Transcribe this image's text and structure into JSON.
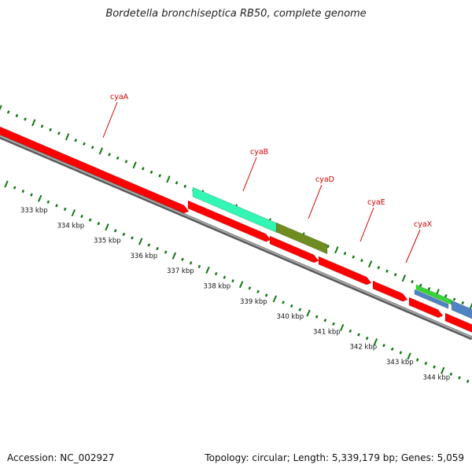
{
  "title": "Bordetella bronchiseptica RB50, complete genome",
  "footer": {
    "accession": "Accession: NC_002927",
    "stats": "Topology: circular; Length: 5,339,179 bp; Genes: 5,059"
  },
  "gene_labels": [
    "cyaA",
    "cyaB",
    "cyaD",
    "cyaE",
    "cyaX"
  ],
  "kbp_labels": [
    "333 kbp",
    "334 kbp",
    "335 kbp",
    "336 kbp",
    "337 kbp",
    "338 kbp",
    "339 kbp",
    "340 kbp",
    "341 kbp",
    "342 kbp",
    "343 kbp",
    "344 kbp"
  ],
  "colors": {
    "cds_red": "#ff0000",
    "cyaB_teal": "#33f5b4",
    "cyaD_olive": "#6f8c21",
    "green_feature": "#33d633",
    "blue_feature": "#4f84c2",
    "backbone_grey": "#8c8c8c",
    "tick_green": "#117711",
    "label_red": "#d40000"
  }
}
